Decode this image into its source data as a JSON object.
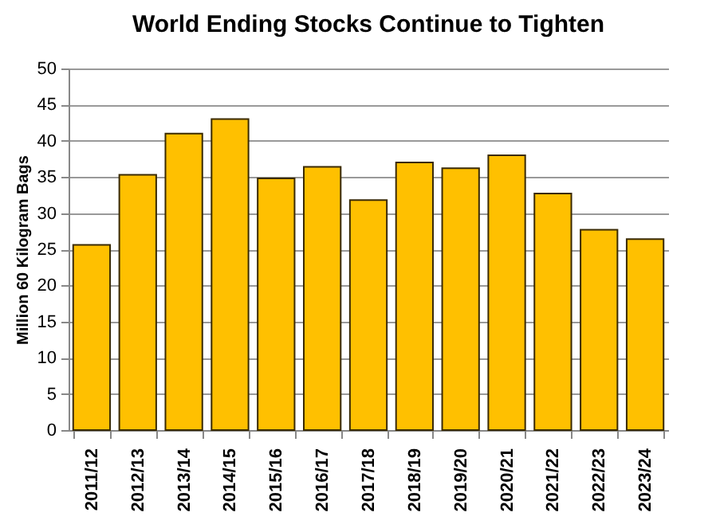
{
  "chart_data": {
    "type": "bar",
    "title": "World Ending Stocks Continue to Tighten",
    "ylabel": "Million 60 Kilogram Bags",
    "categories": [
      "2011/12",
      "2012/13",
      "2013/14",
      "2014/15",
      "2015/16",
      "2016/17",
      "2017/18",
      "2018/19",
      "2019/20",
      "2020/21",
      "2021/22",
      "2022/23",
      "2023/24"
    ],
    "values": [
      25.6,
      35.3,
      41.0,
      43.0,
      34.8,
      36.4,
      31.8,
      37.0,
      36.2,
      38.0,
      32.7,
      27.7,
      26.4
    ],
    "color": "#ffc000",
    "ylim": [
      0,
      50
    ],
    "yticks": [
      0,
      5,
      10,
      15,
      20,
      25,
      30,
      35,
      40,
      45,
      50
    ],
    "grid": "y"
  }
}
